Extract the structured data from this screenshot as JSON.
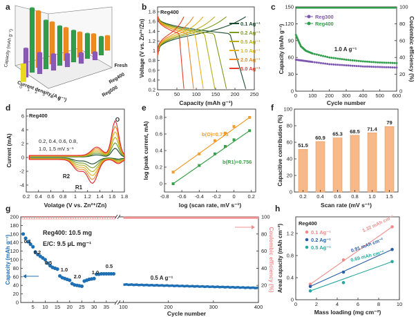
{
  "chart_data": [
    {
      "panel": "a",
      "type": "bar3d",
      "zlabel": "Capacity (mAh g⁻¹)",
      "xlabel": "Current density (A g⁻¹)",
      "series": [
        {
          "name": "Fresh",
          "color": "#f08a1c",
          "values": [
            215,
            160,
            125,
            95,
            75,
            55
          ]
        },
        {
          "name": "Reg400",
          "color": "#2e9e4a",
          "values": [
            245,
            185,
            150,
            120,
            95,
            70
          ]
        },
        {
          "name": "Reg500",
          "color": "#8a58b5",
          "values": [
            110,
            80,
            62,
            50,
            40,
            30
          ]
        },
        {
          "name": "",
          "color": "#e8d820",
          "values": [
            70
          ]
        }
      ],
      "tick_labels": {
        "x": [
          "0",
          "1",
          "2",
          "3",
          "4",
          "5"
        ]
      },
      "category_labels": [
        "Fresh",
        "Reg400",
        "Reg500"
      ]
    },
    {
      "panel": "b",
      "type": "line",
      "title": "Reg400",
      "xlabel": "Capacity (mAh g⁻¹)",
      "ylabel": "Voltage (V vs. Zn²⁺/Zn)",
      "xlim": [
        0,
        250
      ],
      "ylim": [
        0.2,
        1.9
      ],
      "xticks": [
        0,
        50,
        100,
        150,
        200,
        250
      ],
      "yticks": [
        0.2,
        0.4,
        0.6,
        0.8,
        1.0,
        1.2,
        1.4,
        1.6,
        1.8
      ],
      "series": [
        {
          "name": "0.1 Ag⁻¹",
          "color": "#1a4a2c",
          "capacity": 228
        },
        {
          "name": "0.2 Ag⁻¹",
          "color": "#7a9a1e",
          "capacity": 178
        },
        {
          "name": "0.5 Ag⁻¹",
          "color": "#b8ad16",
          "capacity": 148
        },
        {
          "name": "1.0 Ag⁻¹",
          "color": "#e2b41c",
          "capacity": 118
        },
        {
          "name": "2.0 Ag⁻¹",
          "color": "#ec8a22",
          "capacity": 93
        },
        {
          "name": "5.0 Ag⁻¹",
          "color": "#e83b26",
          "capacity": 68
        }
      ]
    },
    {
      "panel": "c",
      "type": "line",
      "xlabel": "Cycle number",
      "ylabel": "Capacity (mAh g⁻¹)",
      "y2label": "Coulombic efficiency (%)",
      "xlim": [
        0,
        600
      ],
      "ylim": [
        0,
        150
      ],
      "y2lim": [
        0,
        100
      ],
      "xticks": [
        0,
        100,
        200,
        300,
        400,
        500,
        600
      ],
      "yticks": [
        0,
        30,
        60,
        90,
        120,
        150
      ],
      "y2ticks": [
        0,
        20,
        40,
        60,
        80,
        100
      ],
      "annotation": "1.0 A g⁻¹",
      "series": [
        {
          "name": "Reg300",
          "color": "#7e57b2",
          "points": [
            [
              1,
              56
            ],
            [
              50,
              54
            ],
            [
              100,
              52
            ],
            [
              200,
              48
            ],
            [
              300,
              46
            ],
            [
              400,
              44
            ],
            [
              500,
              43
            ],
            [
              600,
              42
            ]
          ],
          "ce": 99
        },
        {
          "name": "Reg400",
          "color": "#2e9e4a",
          "points": [
            [
              1,
              100
            ],
            [
              30,
              80
            ],
            [
              60,
              72
            ],
            [
              100,
              67
            ],
            [
              200,
              60
            ],
            [
              300,
              56
            ],
            [
              400,
              53
            ],
            [
              500,
              51
            ],
            [
              600,
              50
            ]
          ],
          "ce": 99
        }
      ]
    },
    {
      "panel": "d",
      "type": "line",
      "title": "Reg400",
      "xlabel": "Volatge (V vs. Zn²⁺/Zn)",
      "ylabel": "Current (mA)",
      "xlim": [
        0.2,
        1.8
      ],
      "ylim": [
        -5,
        7
      ],
      "xticks": [
        0.2,
        0.4,
        0.6,
        0.8,
        1.0,
        1.2,
        1.4,
        1.6,
        1.8
      ],
      "yticks": [
        -4,
        -2,
        0,
        2,
        4,
        6
      ],
      "legend_text": [
        "0.2, 0.4, 0.6, 0.8,",
        "1.0, 1.5 mV s⁻¹"
      ],
      "peak_labels": [
        "O",
        "R1",
        "R2"
      ],
      "series": [
        {
          "scan_rate": 0.2,
          "color": "#1a4a2c",
          "amp": 0.25
        },
        {
          "scan_rate": 0.4,
          "color": "#6a9a2a",
          "amp": 0.4
        },
        {
          "scan_rate": 0.6,
          "color": "#b0ae20",
          "amp": 0.55
        },
        {
          "scan_rate": 0.8,
          "color": "#e0b020",
          "amp": 0.7
        },
        {
          "scan_rate": 1.0,
          "color": "#ec8a22",
          "amp": 0.85
        },
        {
          "scan_rate": 1.5,
          "color": "#e0202e",
          "amp": 1.0
        }
      ]
    },
    {
      "panel": "e",
      "type": "scatter",
      "xlabel": "log (scan rate, mV s⁻¹)",
      "ylabel": "log (peak current, mA)",
      "xlim": [
        -0.8,
        0.25
      ],
      "ylim": [
        -0.1,
        0.9
      ],
      "xticks": [
        -0.8,
        -0.6,
        -0.4,
        -0.2,
        0.0,
        0.2
      ],
      "yticks": [
        0.0,
        0.2,
        0.4,
        0.6,
        0.8
      ],
      "series": [
        {
          "name": "b(O)=0.725",
          "color": "#f39d2c",
          "x": [
            -0.7,
            -0.4,
            -0.22,
            -0.1,
            0.0,
            0.18
          ],
          "y": [
            0.14,
            0.36,
            0.52,
            0.61,
            0.69,
            0.8
          ]
        },
        {
          "name": "b(R1)=0.756",
          "color": "#3aa04a",
          "x": [
            -0.7,
            -0.4,
            -0.22,
            -0.1,
            0.0,
            0.18
          ],
          "y": [
            0.0,
            0.22,
            0.36,
            0.45,
            0.53,
            0.64
          ]
        }
      ]
    },
    {
      "panel": "f",
      "type": "bar",
      "xlabel": "Scan rate (mV s⁻¹)",
      "ylabel": "Capacitive contribution (%)",
      "categories": [
        "0.2",
        "0.4",
        "0.6",
        "0.8",
        "1.0",
        "1.5"
      ],
      "values": [
        51.5,
        60.9,
        65.3,
        68.5,
        71.4,
        79
      ],
      "labels": [
        "51.5",
        "60.9",
        "65.3",
        "68.5",
        "71.4",
        "79"
      ],
      "ylim": [
        0,
        100
      ],
      "yticks": [
        0,
        20,
        40,
        60,
        80,
        100
      ],
      "color": "#f7b98a"
    },
    {
      "panel": "g",
      "type": "scatter",
      "xlabel": "Cycle number",
      "ylabel": "Capacity (mAh g⁻¹)",
      "y2label": "Coulombic efficiency (%)",
      "ylim": [
        0,
        200
      ],
      "y2lim": [
        0,
        100
      ],
      "yticks": [
        0,
        20,
        40,
        60,
        80,
        100,
        120,
        140,
        160,
        180,
        200
      ],
      "y2ticks": [
        20,
        40,
        60,
        80,
        100
      ],
      "xticks_left": [
        "5",
        "10",
        "15",
        "20",
        "25",
        "30",
        "35"
      ],
      "xticks_right": [
        "100",
        "200",
        "300",
        "400"
      ],
      "info": [
        "Reg400: 10.5 mg",
        "E/C: 9.5 μL mg⁻¹"
      ],
      "rate_labels": [
        "0.1",
        "0.2",
        "0.5",
        "1.0",
        "2.0",
        "1.0",
        "0.5"
      ],
      "annotation": "0.5 A g⁻¹",
      "segments": [
        {
          "rate": 0.1,
          "cycles": [
            1,
            5
          ],
          "capacity": [
            160,
            150,
            142,
            136,
            130
          ]
        },
        {
          "rate": 0.2,
          "cycles": [
            6,
            10
          ],
          "capacity": [
            118,
            112,
            108,
            104,
            100
          ]
        },
        {
          "rate": 0.5,
          "cycles": [
            11,
            15
          ],
          "capacity": [
            92,
            86,
            82,
            80,
            78
          ]
        },
        {
          "rate": 1.0,
          "cycles": [
            16,
            20
          ],
          "capacity": [
            62,
            58,
            56,
            54,
            52
          ]
        },
        {
          "rate": 2.0,
          "cycles": [
            21,
            25
          ],
          "capacity": [
            44,
            41,
            40,
            39,
            38
          ]
        },
        {
          "rate": 1.0,
          "cycles": [
            26,
            30
          ],
          "capacity": [
            50,
            52,
            54,
            55,
            56
          ]
        },
        {
          "rate": 0.5,
          "cycles": [
            31,
            38
          ],
          "capacity": [
            66,
            66,
            67,
            67,
            67,
            67,
            67,
            67
          ]
        }
      ],
      "long_cycling": {
        "rate": 0.5,
        "start": 100,
        "end": 400,
        "capacity_start": 42,
        "capacity_end": 34
      },
      "ce": 99,
      "colors": {
        "capacity": "#1f6fb5",
        "ce": "#f08f8f"
      }
    },
    {
      "panel": "h",
      "type": "scatter",
      "title": "Reg400",
      "xlabel": "Mass loading (mg cm⁻²)",
      "ylabel": "Areal capacity (mAh cm⁻²)",
      "xlim": [
        0,
        10
      ],
      "ylim": [
        0,
        1.5
      ],
      "xticks": [
        0,
        2,
        4,
        6,
        8,
        10
      ],
      "yticks": [
        0.0,
        0.4,
        0.8,
        1.2
      ],
      "series": [
        {
          "name": "0.1 Ag⁻¹",
          "color": "#f28a8a",
          "x": [
            1.4,
            4.6,
            9.3
          ],
          "y": [
            0.28,
            0.72,
            1.32
          ],
          "label": "1.32 mAh cm⁻²"
        },
        {
          "name": "0.2 Ag⁻¹",
          "color": "#2a5fa8",
          "x": [
            1.4,
            4.6,
            9.3
          ],
          "y": [
            0.24,
            0.5,
            0.91
          ],
          "label": "0.91 mAh cm⁻²"
        },
        {
          "name": "0.5 Ag⁻¹",
          "color": "#2aa8a0",
          "x": [
            1.4,
            4.6,
            9.3
          ],
          "y": [
            0.16,
            0.31,
            0.69
          ],
          "label": "0.69 mAh cm⁻²"
        }
      ]
    }
  ]
}
